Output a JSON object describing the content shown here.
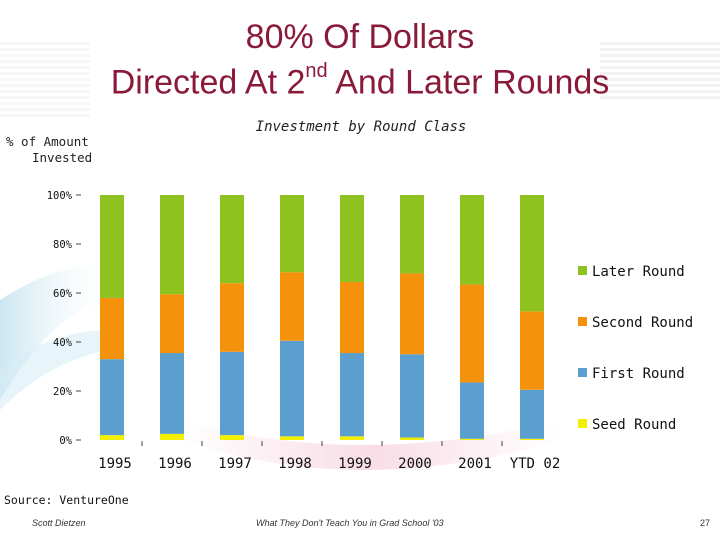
{
  "title": {
    "line1": "80% Of Dollars",
    "line2_pre": "Directed At 2",
    "line2_sup": "nd",
    "line2_post": " And Later Rounds"
  },
  "chart_data": {
    "type": "bar",
    "stacked": true,
    "title": "Investment by Round Class",
    "ylabel": [
      "% of Amount",
      "Invested"
    ],
    "xlabel": "",
    "categories": [
      "1995",
      "1996",
      "1997",
      "1998",
      "1999",
      "2000",
      "2001",
      "YTD 02"
    ],
    "ylim": [
      0,
      100
    ],
    "yticks": [
      "0%",
      "20%",
      "40%",
      "60%",
      "80%",
      "100%"
    ],
    "series": [
      {
        "name": "Seed Round",
        "color": "#f2ef00",
        "values": [
          2,
          2.5,
          2,
          1.5,
          1.5,
          1,
          0.5,
          0.5
        ]
      },
      {
        "name": "First Round",
        "color": "#5b9fcf",
        "values": [
          31,
          33,
          34,
          39,
          34,
          34,
          23,
          20
        ]
      },
      {
        "name": "Second Round",
        "color": "#f5920c",
        "values": [
          25,
          24,
          28,
          28,
          29,
          33,
          40,
          32
        ]
      },
      {
        "name": "Later Round",
        "color": "#8dc21f",
        "values": [
          42,
          40.5,
          36,
          31.5,
          35.5,
          32,
          36.5,
          47.5
        ]
      }
    ],
    "legend": "right",
    "grid": false
  },
  "source": "Source: VentureOne",
  "footer": {
    "author": "Scott Dietzen",
    "talk": "What They Don't Teach You in Grad School '03",
    "page": "27"
  }
}
